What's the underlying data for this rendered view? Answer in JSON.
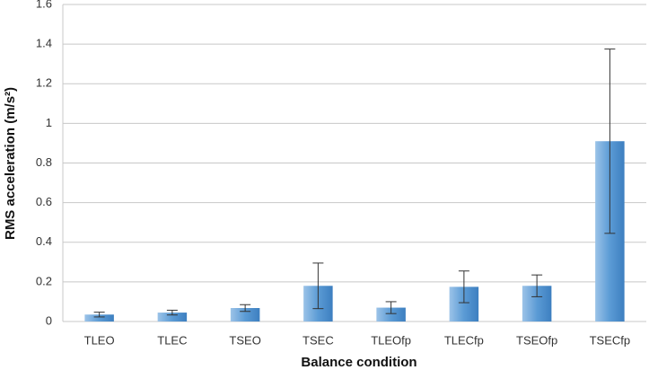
{
  "chart_data": {
    "type": "bar",
    "categories": [
      "TLEO",
      "TLEC",
      "TSEO",
      "TSEC",
      "TLEOfp",
      "TLECfp",
      "TSEOfp",
      "TSECfp"
    ],
    "values": [
      0.035,
      0.045,
      0.068,
      0.18,
      0.07,
      0.175,
      0.18,
      0.91
    ],
    "errors": [
      0.012,
      0.012,
      0.017,
      0.115,
      0.03,
      0.08,
      0.055,
      0.465
    ],
    "color": "#5b9bd5",
    "ylim": [
      0,
      1.6
    ],
    "yticks": [
      0,
      0.2,
      0.4,
      0.6,
      0.8,
      1,
      1.2,
      1.4,
      1.6
    ],
    "grid": true,
    "xlabel": "Balance condition",
    "ylabel": "RMS acceleration (m/s²)"
  }
}
